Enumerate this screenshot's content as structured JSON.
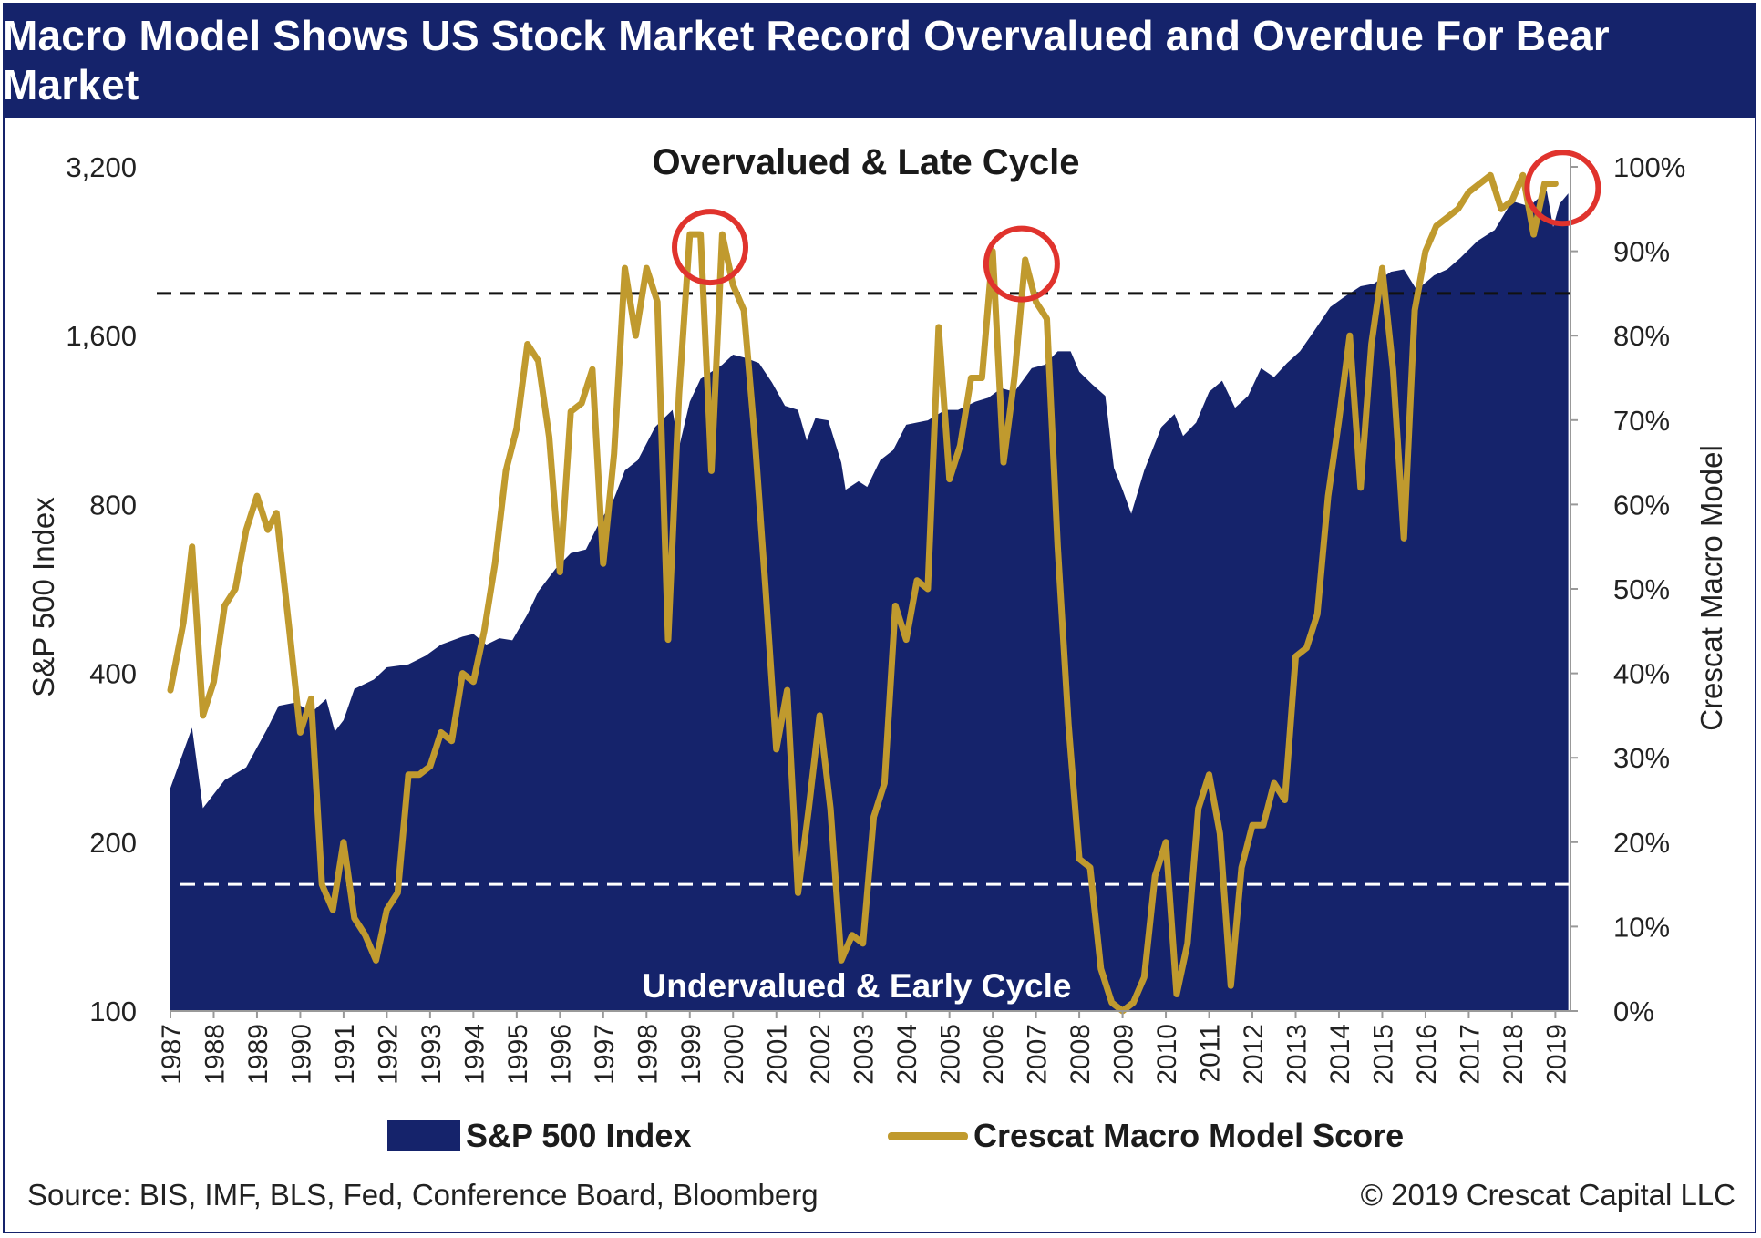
{
  "header": {
    "title": "Macro Model Shows US Stock Market Record Overvalued and Overdue For Bear Market"
  },
  "axes": {
    "left_label": "S&P 500 Index",
    "right_label": "Crescat Macro Model"
  },
  "legend": {
    "sp500": "S&P 500 Index",
    "model": "Crescat Macro Model Score"
  },
  "footer": {
    "source": "Source: BIS, IMF, BLS, Fed, Conference Board, Bloomberg",
    "copyright": "© 2019 Crescat Capital LLC"
  },
  "chart_data": {
    "type": "area+line",
    "title": "Macro Model Shows US Stock Market Record Overvalued and Overdue For Bear Market",
    "x_ticks": [
      "1987",
      "1988",
      "1989",
      "1990",
      "1991",
      "1992",
      "1993",
      "1994",
      "1995",
      "1996",
      "1997",
      "1998",
      "1999",
      "2000",
      "2001",
      "2002",
      "2003",
      "2004",
      "2005",
      "2006",
      "2007",
      "2008",
      "2009",
      "2010",
      "2011",
      "2012",
      "2013",
      "2014",
      "2015",
      "2016",
      "2017",
      "2018",
      "2019"
    ],
    "y_left": {
      "label": "S&P 500 Index",
      "scale": "log2",
      "ticks": [
        100,
        200,
        400,
        800,
        1600,
        3200
      ],
      "tick_labels": [
        "100",
        "200",
        "400",
        "800",
        "1,600",
        "3,200"
      ]
    },
    "y_right": {
      "label": "Crescat Macro Model",
      "ticks": [
        0,
        10,
        20,
        30,
        40,
        50,
        60,
        70,
        80,
        90,
        100
      ],
      "tick_labels": [
        "0%",
        "10%",
        "20%",
        "30%",
        "40%",
        "50%",
        "60%",
        "70%",
        "80%",
        "90%",
        "100%"
      ]
    },
    "annotations": {
      "upper": "Overvalued & Late Cycle",
      "lower": "Undervalued & Early Cycle",
      "upper_threshold_pct": 85,
      "lower_threshold_pct": 15,
      "highlighted_peaks": [
        1999.3,
        2006.5,
        2019.0
      ]
    },
    "series": [
      {
        "name": "S&P 500 Index",
        "kind": "area",
        "color": "#15236b",
        "points": [
          [
            1987.0,
            250
          ],
          [
            1987.5,
            320
          ],
          [
            1987.75,
            230
          ],
          [
            1988.25,
            258
          ],
          [
            1988.75,
            272
          ],
          [
            1989.25,
            320
          ],
          [
            1989.5,
            350
          ],
          [
            1989.9,
            355
          ],
          [
            1990.25,
            340
          ],
          [
            1990.6,
            360
          ],
          [
            1990.8,
            315
          ],
          [
            1991.0,
            330
          ],
          [
            1991.25,
            375
          ],
          [
            1991.7,
            390
          ],
          [
            1992.0,
            410
          ],
          [
            1992.5,
            415
          ],
          [
            1992.9,
            430
          ],
          [
            1993.25,
            450
          ],
          [
            1993.75,
            465
          ],
          [
            1994.0,
            470
          ],
          [
            1994.3,
            450
          ],
          [
            1994.6,
            462
          ],
          [
            1994.9,
            458
          ],
          [
            1995.25,
            510
          ],
          [
            1995.5,
            560
          ],
          [
            1995.9,
            615
          ],
          [
            1996.25,
            655
          ],
          [
            1996.6,
            665
          ],
          [
            1996.9,
            740
          ],
          [
            1997.25,
            820
          ],
          [
            1997.5,
            920
          ],
          [
            1997.8,
            960
          ],
          [
            1998.2,
            1100
          ],
          [
            1998.6,
            1180
          ],
          [
            1998.75,
            1010
          ],
          [
            1999.0,
            1220
          ],
          [
            1999.25,
            1340
          ],
          [
            1999.75,
            1420
          ],
          [
            2000.0,
            1480
          ],
          [
            2000.3,
            1460
          ],
          [
            2000.6,
            1430
          ],
          [
            2000.9,
            1320
          ],
          [
            2001.2,
            1200
          ],
          [
            2001.5,
            1180
          ],
          [
            2001.7,
            1040
          ],
          [
            2001.9,
            1140
          ],
          [
            2002.2,
            1130
          ],
          [
            2002.5,
            950
          ],
          [
            2002.6,
            850
          ],
          [
            2002.9,
            880
          ],
          [
            2003.1,
            860
          ],
          [
            2003.4,
            960
          ],
          [
            2003.7,
            1000
          ],
          [
            2004.0,
            1110
          ],
          [
            2004.5,
            1130
          ],
          [
            2004.9,
            1180
          ],
          [
            2005.2,
            1180
          ],
          [
            2005.6,
            1220
          ],
          [
            2005.9,
            1240
          ],
          [
            2006.2,
            1290
          ],
          [
            2006.5,
            1270
          ],
          [
            2006.9,
            1400
          ],
          [
            2007.2,
            1420
          ],
          [
            2007.5,
            1500
          ],
          [
            2007.8,
            1500
          ],
          [
            2008.0,
            1380
          ],
          [
            2008.3,
            1310
          ],
          [
            2008.6,
            1250
          ],
          [
            2008.8,
            930
          ],
          [
            2009.0,
            850
          ],
          [
            2009.2,
            770
          ],
          [
            2009.5,
            920
          ],
          [
            2009.9,
            1100
          ],
          [
            2010.2,
            1160
          ],
          [
            2010.4,
            1060
          ],
          [
            2010.7,
            1120
          ],
          [
            2011.0,
            1270
          ],
          [
            2011.3,
            1330
          ],
          [
            2011.6,
            1190
          ],
          [
            2011.9,
            1250
          ],
          [
            2012.2,
            1400
          ],
          [
            2012.5,
            1350
          ],
          [
            2012.8,
            1430
          ],
          [
            2013.1,
            1500
          ],
          [
            2013.4,
            1620
          ],
          [
            2013.8,
            1800
          ],
          [
            2014.1,
            1870
          ],
          [
            2014.5,
            1960
          ],
          [
            2014.8,
            1980
          ],
          [
            2015.2,
            2080
          ],
          [
            2015.5,
            2100
          ],
          [
            2015.8,
            1930
          ],
          [
            2016.2,
            2050
          ],
          [
            2016.5,
            2100
          ],
          [
            2016.8,
            2200
          ],
          [
            2017.2,
            2360
          ],
          [
            2017.6,
            2470
          ],
          [
            2018.0,
            2780
          ],
          [
            2018.4,
            2720
          ],
          [
            2018.8,
            2900
          ],
          [
            2018.95,
            2500
          ],
          [
            2019.1,
            2750
          ],
          [
            2019.3,
            2870
          ]
        ]
      },
      {
        "name": "Crescat Macro Model Score",
        "kind": "line",
        "color": "#c09a2e",
        "points": [
          [
            1987.0,
            38
          ],
          [
            1987.3,
            46
          ],
          [
            1987.5,
            55
          ],
          [
            1987.75,
            35
          ],
          [
            1988.0,
            39
          ],
          [
            1988.25,
            48
          ],
          [
            1988.5,
            50
          ],
          [
            1988.75,
            57
          ],
          [
            1989.0,
            61
          ],
          [
            1989.25,
            57
          ],
          [
            1989.45,
            59
          ],
          [
            1989.75,
            45
          ],
          [
            1990.0,
            33
          ],
          [
            1990.25,
            37
          ],
          [
            1990.5,
            15
          ],
          [
            1990.75,
            12
          ],
          [
            1991.0,
            20
          ],
          [
            1991.25,
            11
          ],
          [
            1991.5,
            9
          ],
          [
            1991.75,
            6
          ],
          [
            1992.0,
            12
          ],
          [
            1992.25,
            14
          ],
          [
            1992.5,
            28
          ],
          [
            1992.75,
            28
          ],
          [
            1993.0,
            29
          ],
          [
            1993.25,
            33
          ],
          [
            1993.5,
            32
          ],
          [
            1993.75,
            40
          ],
          [
            1994.0,
            39
          ],
          [
            1994.25,
            45
          ],
          [
            1994.5,
            53
          ],
          [
            1994.75,
            64
          ],
          [
            1995.0,
            69
          ],
          [
            1995.25,
            79
          ],
          [
            1995.5,
            77
          ],
          [
            1995.75,
            68
          ],
          [
            1996.0,
            52
          ],
          [
            1996.25,
            71
          ],
          [
            1996.5,
            72
          ],
          [
            1996.75,
            76
          ],
          [
            1997.0,
            53
          ],
          [
            1997.25,
            66
          ],
          [
            1997.5,
            88
          ],
          [
            1997.75,
            80
          ],
          [
            1998.0,
            88
          ],
          [
            1998.25,
            84
          ],
          [
            1998.5,
            44
          ],
          [
            1998.75,
            73
          ],
          [
            1999.0,
            92
          ],
          [
            1999.25,
            92
          ],
          [
            1999.5,
            64
          ],
          [
            1999.75,
            92
          ],
          [
            2000.0,
            86
          ],
          [
            2000.25,
            83
          ],
          [
            2000.5,
            68
          ],
          [
            2000.75,
            50
          ],
          [
            2001.0,
            31
          ],
          [
            2001.25,
            38
          ],
          [
            2001.5,
            14
          ],
          [
            2001.75,
            24
          ],
          [
            2002.0,
            35
          ],
          [
            2002.25,
            24
          ],
          [
            2002.5,
            6
          ],
          [
            2002.75,
            9
          ],
          [
            2003.0,
            8
          ],
          [
            2003.25,
            23
          ],
          [
            2003.5,
            27
          ],
          [
            2003.75,
            48
          ],
          [
            2004.0,
            44
          ],
          [
            2004.25,
            51
          ],
          [
            2004.5,
            50
          ],
          [
            2004.75,
            81
          ],
          [
            2005.0,
            63
          ],
          [
            2005.25,
            67
          ],
          [
            2005.5,
            75
          ],
          [
            2005.75,
            75
          ],
          [
            2006.0,
            90
          ],
          [
            2006.25,
            65
          ],
          [
            2006.5,
            75
          ],
          [
            2006.75,
            89
          ],
          [
            2007.0,
            84
          ],
          [
            2007.25,
            82
          ],
          [
            2007.5,
            55
          ],
          [
            2007.75,
            34
          ],
          [
            2008.0,
            18
          ],
          [
            2008.25,
            17
          ],
          [
            2008.5,
            5
          ],
          [
            2008.75,
            1
          ],
          [
            2009.0,
            0
          ],
          [
            2009.25,
            1
          ],
          [
            2009.5,
            4
          ],
          [
            2009.75,
            16
          ],
          [
            2010.0,
            20
          ],
          [
            2010.25,
            2
          ],
          [
            2010.5,
            8
          ],
          [
            2010.75,
            24
          ],
          [
            2011.0,
            28
          ],
          [
            2011.25,
            21
          ],
          [
            2011.5,
            3
          ],
          [
            2011.75,
            17
          ],
          [
            2012.0,
            22
          ],
          [
            2012.25,
            22
          ],
          [
            2012.5,
            27
          ],
          [
            2012.75,
            25
          ],
          [
            2013.0,
            42
          ],
          [
            2013.25,
            43
          ],
          [
            2013.5,
            47
          ],
          [
            2013.75,
            61
          ],
          [
            2014.0,
            70
          ],
          [
            2014.25,
            80
          ],
          [
            2014.5,
            62
          ],
          [
            2014.75,
            79
          ],
          [
            2015.0,
            88
          ],
          [
            2015.25,
            76
          ],
          [
            2015.5,
            56
          ],
          [
            2015.75,
            83
          ],
          [
            2016.0,
            90
          ],
          [
            2016.25,
            93
          ],
          [
            2016.5,
            94
          ],
          [
            2016.75,
            95
          ],
          [
            2017.0,
            97
          ],
          [
            2017.25,
            98
          ],
          [
            2017.5,
            99
          ],
          [
            2017.75,
            95
          ],
          [
            2018.0,
            96
          ],
          [
            2018.25,
            99
          ],
          [
            2018.5,
            92
          ],
          [
            2018.75,
            98
          ],
          [
            2019.0,
            98
          ]
        ]
      }
    ]
  }
}
